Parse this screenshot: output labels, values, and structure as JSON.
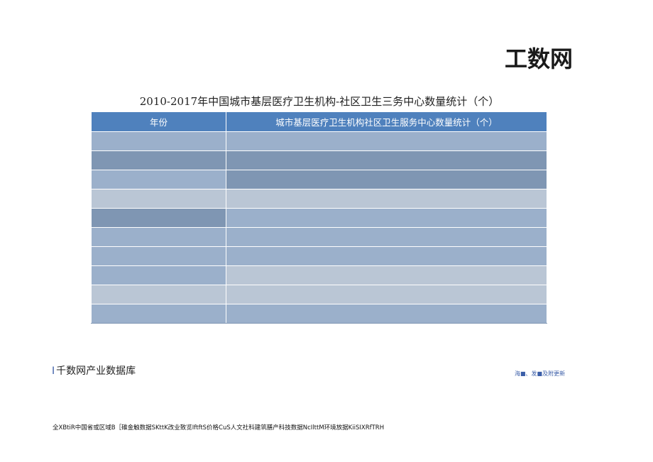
{
  "logo": "工数网",
  "title": "2010-2017年中国城市基层医疗卫生机构-社区卫生三务中心数量统计（个）",
  "table": {
    "headers": [
      "年份",
      "城市基层医疗卫生机构社区卫生服务中心数量统计（个）"
    ],
    "rows": [
      {
        "year": "",
        "value": "",
        "year_color": "a",
        "value_color": "a"
      },
      {
        "year": "",
        "value": "",
        "year_color": "b",
        "value_color": "b"
      },
      {
        "year": "",
        "value": "",
        "year_color": "a",
        "value_color": "b"
      },
      {
        "year": "",
        "value": "",
        "year_color": "c",
        "value_color": "c"
      },
      {
        "year": "",
        "value": "",
        "year_color": "b",
        "value_color": "a"
      },
      {
        "year": "",
        "value": "",
        "year_color": "a",
        "value_color": "a"
      },
      {
        "year": "",
        "value": "",
        "year_color": "a",
        "value_color": "a"
      },
      {
        "year": "",
        "value": "",
        "year_color": "a",
        "value_color": "c"
      },
      {
        "year": "",
        "value": "",
        "year_color": "c",
        "value_color": "c"
      },
      {
        "year": "",
        "value": "",
        "year_color": "a",
        "value_color": "a"
      }
    ]
  },
  "colors": {
    "header": "#4f81bd",
    "a": "#9bb0cb",
    "b": "#7f96b3",
    "c": "#bac6d5"
  },
  "footer": {
    "brand_prefix": "I",
    "brand": "千数网产业数据库",
    "note": "海■、发■及附更新",
    "links": "全XBtiR中国省或区域B［碓金触数据SKttK改业致览IftftS价格CuS人文社科建筑膳产科技数据NcIlttM环境放据KiiSIXRfTRH"
  }
}
